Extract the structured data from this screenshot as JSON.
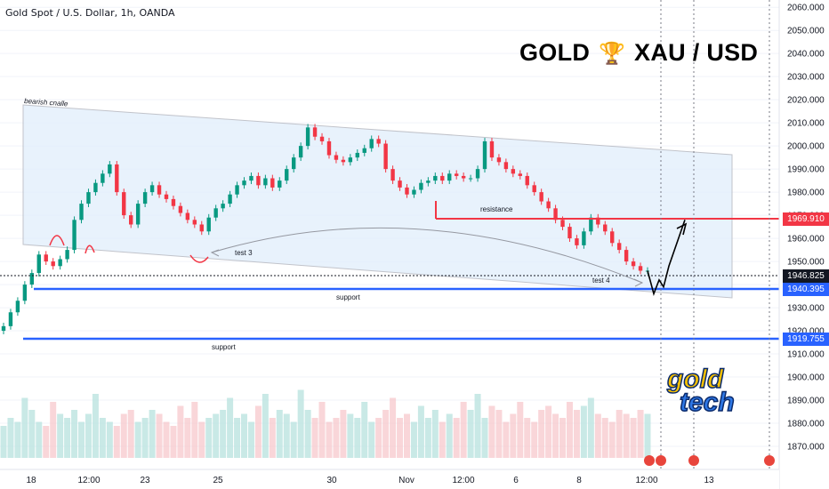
{
  "header": {
    "symbol": "Gold Spot / U.S. Dollar, 1h, OANDA"
  },
  "title": {
    "left": "GOLD",
    "icon": "trophy-icon",
    "right": "XAU / USD"
  },
  "logo": {
    "line1": "gold",
    "line2": "tech"
  },
  "colors": {
    "up": "#089981",
    "down": "#f23645",
    "support": "#2962ff",
    "resistance": "#f23645",
    "channel": "#e3effc"
  },
  "price_labels": [
    {
      "value": "1969.910",
      "type": "resistance"
    },
    {
      "value": "1946.825",
      "type": "current"
    },
    {
      "value": "1940.395",
      "type": "support"
    },
    {
      "value": "1919.755",
      "type": "support"
    }
  ],
  "annotations": {
    "channel": "bearish cnalle",
    "resistance": "resistance",
    "support_upper": "support",
    "support_lower": "support",
    "test3": "test 3",
    "test4": "test 4"
  },
  "chart_data": {
    "type": "line",
    "title": "GOLD XAU / USD",
    "ylim": [
      1865,
      2062
    ],
    "y_ticks": [
      "2060.000",
      "2050.000",
      "2040.000",
      "2030.000",
      "2020.000",
      "2010.000",
      "2000.000",
      "1990.000",
      "1980.000",
      "1970.000",
      "1960.000",
      "1950.000",
      "1940.000",
      "1930.000",
      "1920.000",
      "1910.000",
      "1900.000",
      "1890.000",
      "1880.000",
      "1870.000"
    ],
    "x_ticks": [
      "18",
      "12:00",
      "23",
      "25",
      "30",
      "Nov",
      "12:00",
      "6",
      "8",
      "12:00",
      "13"
    ],
    "series": [
      {
        "values": [
          1922,
          1928,
          1933,
          1940,
          1945,
          1953,
          1950,
          1948,
          1951,
          1955,
          1968,
          1975,
          1980,
          1984,
          1988,
          1992,
          1980,
          1970,
          1966,
          1975,
          1980,
          1983,
          1979,
          1977,
          1974,
          1971,
          1968,
          1966,
          1963,
          1969,
          1973,
          1975,
          1979,
          1983,
          1985,
          1987,
          1983,
          1986,
          1982,
          1985,
          1990,
          1995,
          2000,
          2008,
          2004,
          2002,
          1996,
          1994,
          1993,
          1995,
          1997,
          1999,
          2003,
          2001,
          1990,
          1985,
          1982,
          1979,
          1981,
          1984,
          1985,
          1987,
          1985,
          1988,
          1987,
          1986,
          1986,
          1990,
          2002,
          1995,
          1993,
          1990,
          1988,
          1987,
          1983,
          1980,
          1976,
          1973,
          1968,
          1965,
          1960,
          1957,
          1963,
          1969,
          1966,
          1963,
          1958,
          1955,
          1950,
          1948,
          1946,
          1946
        ],
        "volume": [
          8,
          10,
          9,
          15,
          12,
          9,
          8,
          14,
          11,
          10,
          12,
          9,
          11,
          16,
          10,
          9,
          8,
          11,
          12,
          9,
          10,
          12,
          11,
          9,
          8,
          13,
          10,
          14,
          9,
          10,
          11,
          12,
          15,
          10,
          11,
          9,
          13,
          16,
          10,
          12,
          11,
          9,
          17,
          12,
          10,
          14,
          9,
          10,
          12,
          11,
          10,
          14,
          9,
          10,
          12,
          15,
          10,
          11,
          9,
          13,
          10,
          12,
          9,
          11,
          10,
          14,
          12,
          16,
          10,
          13,
          12,
          9,
          11,
          14,
          10,
          9,
          12,
          13,
          11,
          10,
          14,
          12,
          13,
          15,
          11,
          10,
          9,
          12,
          11,
          10,
          12,
          11
        ]
      }
    ],
    "projection": [
      1946,
      1936,
      1942,
      1939,
      1948,
      1968
    ]
  },
  "markers": [
    "flag-icon",
    "flag-icon",
    "flag-icon",
    "flag-icon"
  ]
}
